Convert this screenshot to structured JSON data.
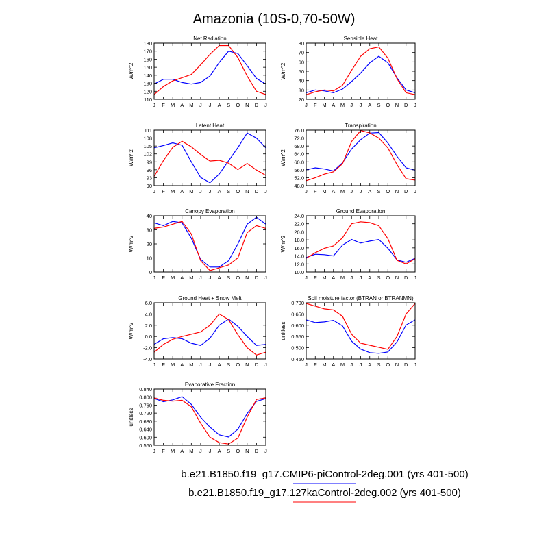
{
  "title": "Amazonia (10S-0,70-50W)",
  "colors": {
    "series1": "#0000ff",
    "series2": "#ff0000",
    "axis": "#000000"
  },
  "legend": [
    {
      "label": "b.e21.B1850.f19_g17.CMIP6-piControl-2deg.001 (yrs 401-500)",
      "color": "#0000ff"
    },
    {
      "label": "b.e21.B1850.f19_g17.127kaControl-2deg.002 (yrs 401-500)",
      "color": "#ff0000"
    }
  ],
  "chart_data": [
    {
      "type": "line",
      "title": "Net Radiation",
      "ylabel": "W/m^2",
      "categories": [
        "J",
        "F",
        "M",
        "A",
        "M",
        "J",
        "J",
        "A",
        "S",
        "O",
        "N",
        "D",
        "J"
      ],
      "ylim": [
        110,
        180
      ],
      "yticks": [
        "110",
        "120",
        "130",
        "140",
        "150",
        "160",
        "170",
        "180"
      ],
      "series": [
        {
          "name": "CMIP6-piControl",
          "values": [
            129,
            135,
            135,
            131,
            129,
            131,
            139,
            156,
            170,
            167,
            152,
            136,
            129
          ]
        },
        {
          "name": "127kaControl",
          "values": [
            116,
            126,
            133,
            137,
            141,
            153,
            166,
            177,
            177,
            162,
            139,
            120,
            116
          ]
        }
      ]
    },
    {
      "type": "line",
      "title": "Sensible Heat",
      "ylabel": "W/m^2",
      "categories": [
        "J",
        "F",
        "M",
        "A",
        "M",
        "J",
        "J",
        "A",
        "S",
        "O",
        "N",
        "D",
        "J"
      ],
      "ylim": [
        20,
        80
      ],
      "yticks": [
        "20",
        "30",
        "40",
        "50",
        "60",
        "70",
        "80"
      ],
      "series": [
        {
          "name": "CMIP6-piControl",
          "values": [
            27,
            30,
            29,
            27,
            31,
            39,
            48,
            59,
            66,
            59,
            43,
            30,
            27
          ]
        },
        {
          "name": "127kaControl",
          "values": [
            25,
            28,
            30,
            29,
            35,
            51,
            66,
            74,
            76,
            64,
            42,
            27,
            25
          ]
        }
      ]
    },
    {
      "type": "line",
      "title": "Latent Heat",
      "ylabel": "W/m^2",
      "categories": [
        "J",
        "F",
        "M",
        "A",
        "M",
        "J",
        "J",
        "A",
        "S",
        "O",
        "N",
        "D",
        "J"
      ],
      "ylim": [
        90,
        111
      ],
      "yticks": [
        "90",
        "93",
        "96",
        "99",
        "102",
        "105",
        "108",
        "111"
      ],
      "series": [
        {
          "name": "CMIP6-piControl",
          "values": [
            104.3,
            105.2,
            106.2,
            105.3,
            99.0,
            93.1,
            91.1,
            94.4,
            99.4,
            104.4,
            109.9,
            108.0,
            104.3
          ]
        },
        {
          "name": "127kaControl",
          "values": [
            93.5,
            99.5,
            104.5,
            106.8,
            104.7,
            101.8,
            99.3,
            99.6,
            98.5,
            96.1,
            98.4,
            95.9,
            93.9
          ]
        }
      ]
    },
    {
      "type": "line",
      "title": "Transpiration",
      "ylabel": "W/m^2",
      "categories": [
        "J",
        "F",
        "M",
        "A",
        "M",
        "J",
        "J",
        "A",
        "S",
        "O",
        "N",
        "D",
        "J"
      ],
      "ylim": [
        48,
        76
      ],
      "yticks": [
        "48.0",
        "52.0",
        "56.0",
        "60.0",
        "64.0",
        "68.0",
        "72.0",
        "76.0"
      ],
      "series": [
        {
          "name": "CMIP6-piControl",
          "values": [
            56.0,
            57.0,
            56.4,
            55.4,
            59.5,
            66.5,
            71.2,
            74.5,
            74.8,
            69.5,
            62.8,
            57.0,
            55.8
          ]
        },
        {
          "name": "127kaControl",
          "values": [
            50.5,
            52.0,
            53.8,
            55.0,
            59.0,
            70.3,
            75.8,
            74.6,
            72.0,
            67.0,
            58.6,
            51.5,
            50.8
          ]
        }
      ]
    },
    {
      "type": "line",
      "title": "Canopy Evaporation",
      "ylabel": "W/m^2",
      "categories": [
        "J",
        "F",
        "M",
        "A",
        "M",
        "J",
        "J",
        "A",
        "S",
        "O",
        "N",
        "D",
        "J"
      ],
      "ylim": [
        0,
        40
      ],
      "yticks": [
        "0",
        "10",
        "20",
        "30",
        "40"
      ],
      "series": [
        {
          "name": "CMIP6-piControl",
          "values": [
            35,
            33,
            36,
            35,
            24,
            9,
            3.5,
            3.5,
            8,
            20,
            34,
            39,
            34
          ]
        },
        {
          "name": "127kaControl",
          "values": [
            31,
            32,
            34,
            36,
            27,
            8,
            1,
            3,
            5,
            10,
            28,
            33,
            31
          ]
        }
      ]
    },
    {
      "type": "line",
      "title": "Ground Evaporation",
      "ylabel": "W/m^2",
      "categories": [
        "J",
        "F",
        "M",
        "A",
        "M",
        "J",
        "J",
        "A",
        "S",
        "O",
        "N",
        "D",
        "J"
      ],
      "ylim": [
        10,
        24
      ],
      "yticks": [
        "10.0",
        "12.0",
        "14.0",
        "16.0",
        "18.0",
        "20.0",
        "22.0",
        "24.0"
      ],
      "series": [
        {
          "name": "CMIP6-piControl",
          "values": [
            13.6,
            14.4,
            14.3,
            14.0,
            16.7,
            18.1,
            17.2,
            17.7,
            18.1,
            15.9,
            13.0,
            12.4,
            13.4
          ]
        },
        {
          "name": "127kaControl",
          "values": [
            13.4,
            14.8,
            15.9,
            16.5,
            18.5,
            22.0,
            22.5,
            22.3,
            21.5,
            18.3,
            12.9,
            12.0,
            13.3
          ]
        }
      ]
    },
    {
      "type": "line",
      "title": "Ground Heat + Snow Melt",
      "ylabel": "W/m^2",
      "categories": [
        "J",
        "F",
        "M",
        "A",
        "M",
        "J",
        "J",
        "A",
        "S",
        "O",
        "N",
        "D",
        "J"
      ],
      "ylim": [
        -4,
        6
      ],
      "yticks": [
        "-4.0",
        "-2.0",
        "0.0",
        "2.0",
        "4.0",
        "6.0"
      ],
      "series": [
        {
          "name": "CMIP6-piControl",
          "values": [
            -1.4,
            -0.4,
            -0.2,
            -0.4,
            -1.2,
            -1.6,
            -0.3,
            2.0,
            3.1,
            1.8,
            0.0,
            -1.6,
            -1.4
          ]
        },
        {
          "name": "127kaControl",
          "values": [
            -2.8,
            -1.4,
            -0.5,
            0.0,
            0.4,
            0.8,
            2.0,
            4.0,
            3.0,
            0.3,
            -2.0,
            -3.3,
            -2.8
          ]
        }
      ]
    },
    {
      "type": "line",
      "title": "Soil moisture factor (BTRAN or BTRANMN)",
      "ylabel": "unitless",
      "categories": [
        "J",
        "F",
        "M",
        "A",
        "M",
        "J",
        "J",
        "A",
        "S",
        "O",
        "N",
        "D",
        "J"
      ],
      "ylim": [
        0.45,
        0.7
      ],
      "yticks": [
        "0.450",
        "0.500",
        "0.550",
        "0.600",
        "0.650",
        "0.700"
      ],
      "series": [
        {
          "name": "CMIP6-piControl",
          "values": [
            0.624,
            0.612,
            0.615,
            0.622,
            0.597,
            0.529,
            0.494,
            0.478,
            0.475,
            0.481,
            0.526,
            0.601,
            0.624
          ]
        },
        {
          "name": "127kaControl",
          "values": [
            0.697,
            0.685,
            0.673,
            0.668,
            0.64,
            0.56,
            0.52,
            0.511,
            0.502,
            0.493,
            0.55,
            0.65,
            0.697
          ]
        }
      ]
    },
    {
      "type": "line",
      "title": "Evaporative Fraction",
      "ylabel": "unitless",
      "categories": [
        "J",
        "F",
        "M",
        "A",
        "M",
        "J",
        "J",
        "A",
        "S",
        "O",
        "N",
        "D",
        "J"
      ],
      "ylim": [
        0.56,
        0.84
      ],
      "yticks": [
        "0.560",
        "0.600",
        "0.640",
        "0.680",
        "0.720",
        "0.760",
        "0.800",
        "0.840"
      ],
      "series": [
        {
          "name": "CMIP6-piControl",
          "values": [
            0.793,
            0.777,
            0.786,
            0.802,
            0.764,
            0.7,
            0.65,
            0.612,
            0.601,
            0.64,
            0.718,
            0.779,
            0.792
          ]
        },
        {
          "name": "127kaControl",
          "values": [
            0.796,
            0.784,
            0.78,
            0.784,
            0.752,
            0.67,
            0.6,
            0.573,
            0.566,
            0.596,
            0.7,
            0.788,
            0.796
          ]
        }
      ]
    }
  ]
}
